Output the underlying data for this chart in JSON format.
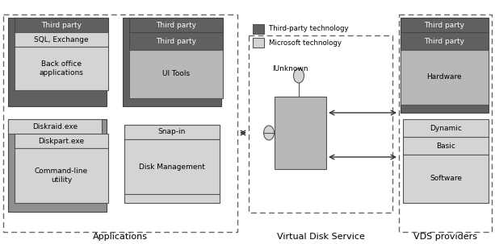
{
  "title_apps": "Applications",
  "title_vds": "Virtual Disk Service",
  "title_providers": "VDS providers",
  "dark_gray": "#606060",
  "mid_gray": "#808080",
  "light_gray": "#B8B8B8",
  "lighter_gray": "#D4D4D4",
  "legend_dark": "Third-party technology",
  "legend_light": "Microsoft technology"
}
